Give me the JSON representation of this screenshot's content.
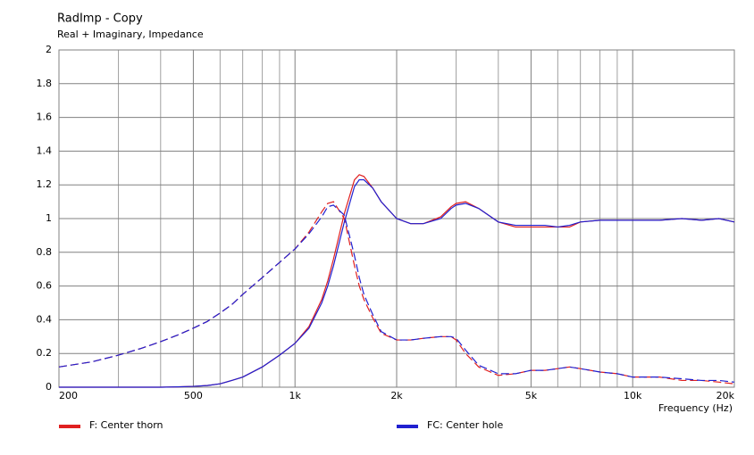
{
  "chart_data": {
    "type": "line",
    "title": "RadImp - Copy",
    "subtitle": "Real + Imaginary, Impedance",
    "x_label": "Frequency  (Hz)",
    "log_x": true,
    "grid": true,
    "xlim": [
      200,
      20000
    ],
    "ylim": [
      0,
      2
    ],
    "xticks": [
      200,
      500,
      {
        "value": 1000,
        "label": "1k"
      },
      {
        "value": 2000,
        "label": "2k"
      },
      {
        "value": 5000,
        "label": "5k"
      },
      {
        "value": 10000,
        "label": "10k"
      },
      {
        "value": 20000,
        "label": "20k"
      }
    ],
    "xgrid": [
      300,
      400,
      600,
      700,
      800,
      900,
      3000,
      4000,
      6000,
      7000,
      8000,
      9000
    ],
    "yticks": [
      0,
      0.2,
      0.4,
      0.6,
      0.8,
      1,
      1.2,
      1.4,
      1.6,
      1.8,
      2
    ],
    "x": [
      200,
      250,
      300,
      350,
      400,
      450,
      500,
      550,
      600,
      650,
      700,
      800,
      900,
      1000,
      1100,
      1200,
      1250,
      1300,
      1400,
      1500,
      1550,
      1600,
      1700,
      1800,
      2000,
      2200,
      2400,
      2700,
      2900,
      3000,
      3200,
      3500,
      4000,
      4500,
      5000,
      5500,
      6000,
      6500,
      7000,
      8000,
      9000,
      10000,
      12000,
      14000,
      16000,
      18000,
      20000
    ],
    "series": [
      {
        "name": "F: Center thorn",
        "color": "#e02020",
        "real": [
          0,
          0,
          0,
          0,
          0,
          0.002,
          0.005,
          0.01,
          0.02,
          0.04,
          0.06,
          0.12,
          0.19,
          0.26,
          0.36,
          0.52,
          0.63,
          0.76,
          1.03,
          1.23,
          1.26,
          1.25,
          1.18,
          1.1,
          1.0,
          0.97,
          0.97,
          1.01,
          1.07,
          1.09,
          1.1,
          1.06,
          0.98,
          0.95,
          0.95,
          0.95,
          0.95,
          0.95,
          0.98,
          0.99,
          0.99,
          0.99,
          0.99,
          1.0,
          0.99,
          1.0,
          0.98
        ],
        "imaginary": [
          0.12,
          0.15,
          0.19,
          0.23,
          0.27,
          0.31,
          0.35,
          0.39,
          0.44,
          0.49,
          0.55,
          0.65,
          0.74,
          0.82,
          0.92,
          1.04,
          1.09,
          1.1,
          1.0,
          0.72,
          0.6,
          0.52,
          0.41,
          0.32,
          0.28,
          0.28,
          0.29,
          0.3,
          0.3,
          0.28,
          0.2,
          0.12,
          0.07,
          0.08,
          0.1,
          0.1,
          0.11,
          0.12,
          0.11,
          0.09,
          0.08,
          0.06,
          0.06,
          0.04,
          0.04,
          0.03,
          0.02
        ]
      },
      {
        "name": "FC: Center hole",
        "color": "#2020d0",
        "real": [
          0,
          0,
          0,
          0,
          0,
          0.002,
          0.005,
          0.01,
          0.02,
          0.04,
          0.06,
          0.12,
          0.19,
          0.26,
          0.35,
          0.5,
          0.6,
          0.72,
          0.98,
          1.19,
          1.23,
          1.23,
          1.18,
          1.1,
          1.0,
          0.97,
          0.97,
          1.0,
          1.06,
          1.08,
          1.09,
          1.06,
          0.98,
          0.96,
          0.96,
          0.96,
          0.95,
          0.96,
          0.98,
          0.99,
          0.99,
          0.99,
          0.99,
          1.0,
          0.99,
          1.0,
          0.98
        ],
        "imaginary": [
          0.12,
          0.15,
          0.19,
          0.23,
          0.27,
          0.31,
          0.35,
          0.39,
          0.44,
          0.49,
          0.55,
          0.65,
          0.74,
          0.82,
          0.91,
          1.01,
          1.07,
          1.08,
          1.02,
          0.78,
          0.65,
          0.55,
          0.43,
          0.33,
          0.28,
          0.28,
          0.29,
          0.3,
          0.3,
          0.29,
          0.22,
          0.13,
          0.08,
          0.08,
          0.1,
          0.1,
          0.11,
          0.12,
          0.11,
          0.09,
          0.08,
          0.06,
          0.06,
          0.05,
          0.04,
          0.04,
          0.03
        ]
      }
    ]
  }
}
